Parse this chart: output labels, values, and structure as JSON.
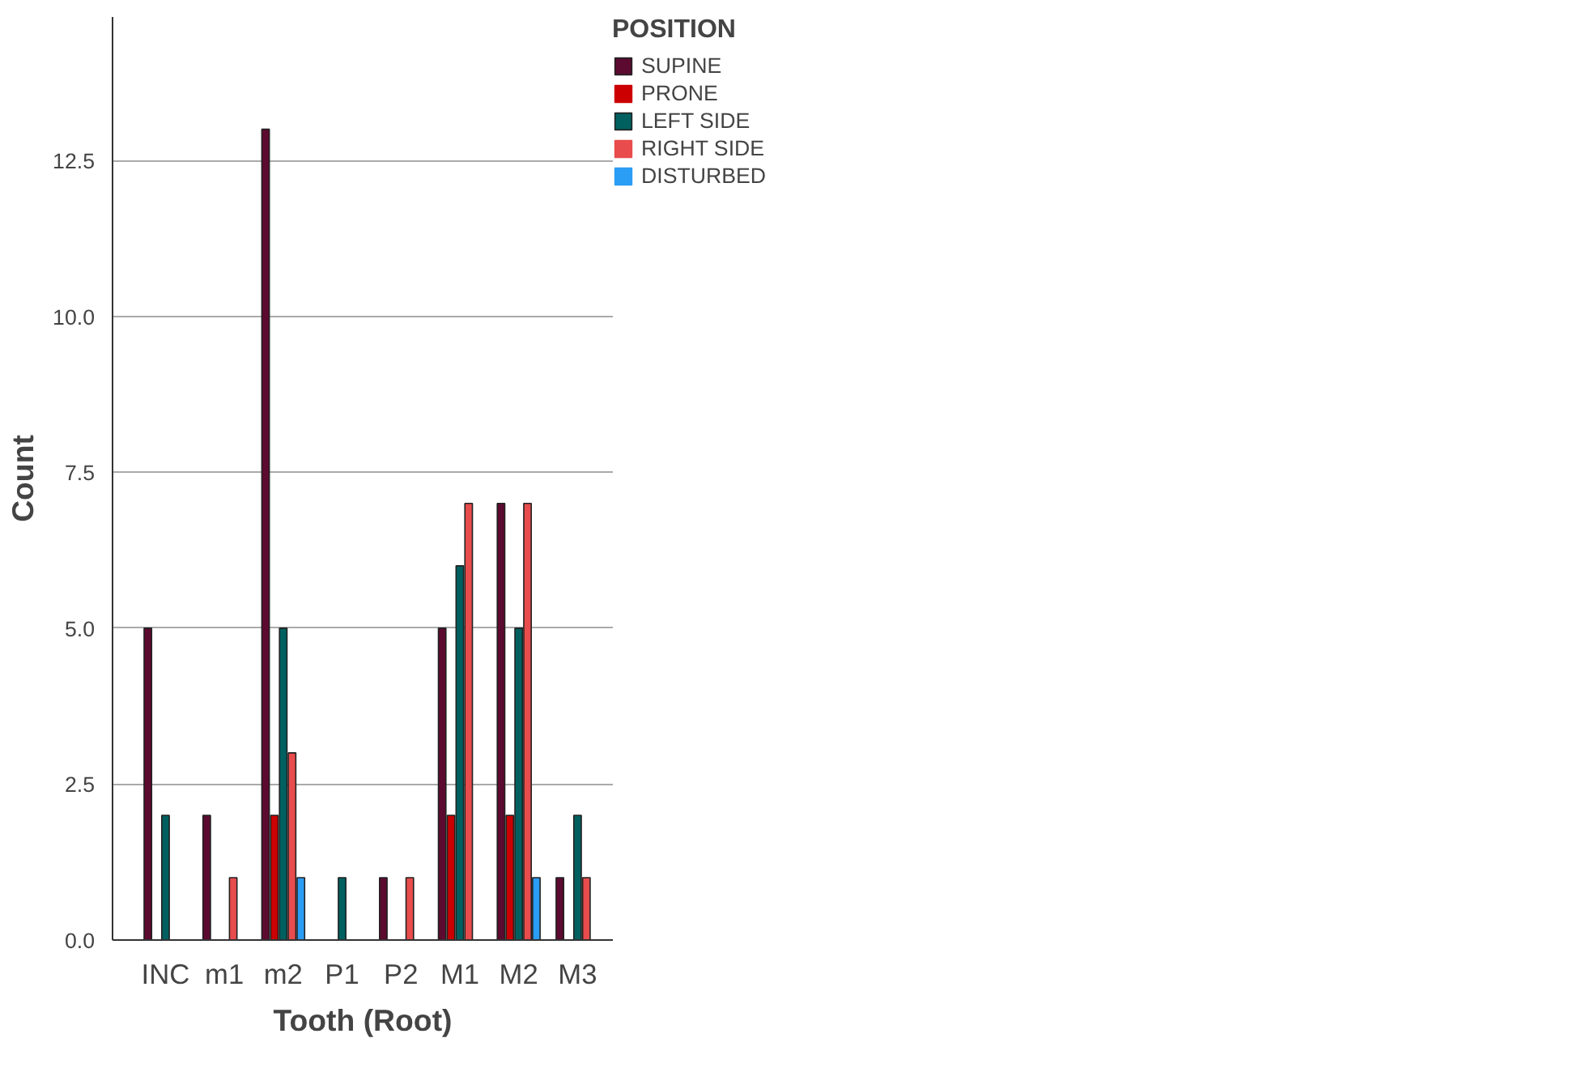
{
  "chart_data": {
    "type": "bar",
    "xlabel": "Tooth (Root)",
    "ylabel": "Count",
    "legend_title": "POSITION",
    "categories": [
      "INC",
      "m1",
      "m2",
      "P1",
      "P2",
      "M1",
      "M2",
      "M3"
    ],
    "series": [
      {
        "name": "SUPINE",
        "color": "#5c0a30",
        "values": [
          5,
          2,
          13,
          0,
          1,
          5,
          7,
          1
        ]
      },
      {
        "name": "PRONE",
        "color": "#cc0000",
        "values": [
          0,
          0,
          2,
          0,
          0,
          2,
          2,
          0
        ]
      },
      {
        "name": "LEFT SIDE",
        "color": "#006060",
        "values": [
          2,
          0,
          5,
          1,
          0,
          6,
          5,
          2
        ]
      },
      {
        "name": "RIGHT SIDE",
        "color": "#e84c4c",
        "values": [
          0,
          1,
          3,
          0,
          1,
          7,
          7,
          1
        ]
      },
      {
        "name": "DISTURBED",
        "color": "#2a9df4",
        "values": [
          0,
          0,
          1,
          0,
          0,
          0,
          1,
          0
        ]
      }
    ],
    "ylim": [
      0,
      14.8
    ],
    "yticks": [
      {
        "value": 0,
        "label": "0.0"
      },
      {
        "value": 2.5,
        "label": "2.5"
      },
      {
        "value": 5,
        "label": "5.0"
      },
      {
        "value": 7.5,
        "label": "7.5"
      },
      {
        "value": 10,
        "label": "10.0"
      },
      {
        "value": 12.5,
        "label": "12.5"
      }
    ],
    "grid": "y",
    "legend": "right"
  }
}
